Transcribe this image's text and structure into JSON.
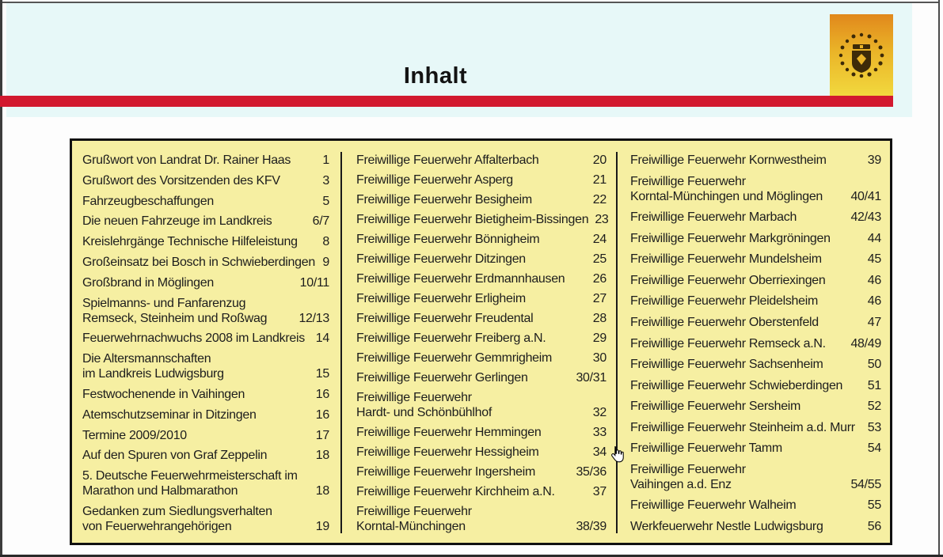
{
  "header": {
    "title": "Inhalt"
  },
  "logo": {
    "name": "kreisfeuerwehrverband-ludwigsburg-seal",
    "colors": {
      "top": "#e1881c",
      "bottom": "#f2d93e",
      "emblem": "#3d2a08"
    }
  },
  "colors": {
    "header_background": "#e7f8f8",
    "divider_red": "#d2192f",
    "panel_yellow": "#f6efa2",
    "text": "#1d1d1d"
  },
  "toc": {
    "columns": [
      {
        "entries": [
          {
            "lines": [
              "Grußwort von Landrat Dr. Rainer Haas"
            ],
            "page": "1"
          },
          {
            "lines": [
              "Grußwort des Vorsitzenden des KFV"
            ],
            "page": "3"
          },
          {
            "lines": [
              "Fahrzeugbeschaffungen"
            ],
            "page": "5"
          },
          {
            "lines": [
              "Die neuen Fahrzeuge im Landkreis"
            ],
            "page": "6/7"
          },
          {
            "lines": [
              "Kreislehrgänge Technische Hilfeleistung"
            ],
            "page": "8"
          },
          {
            "lines": [
              "Großeinsatz bei Bosch in Schwieberdingen"
            ],
            "page": "9"
          },
          {
            "lines": [
              "Großbrand in Möglingen"
            ],
            "page": "10/11"
          },
          {
            "lines": [
              "Spielmanns- und Fanfarenzug",
              "Remseck, Steinheim und Roßwag"
            ],
            "page": "12/13"
          },
          {
            "lines": [
              "Feuerwehrnachwuchs 2008 im Landkreis"
            ],
            "page": "14"
          },
          {
            "lines": [
              "Die Altersmannschaften",
              "im Landkreis Ludwigsburg"
            ],
            "page": "15"
          },
          {
            "lines": [
              "Festwochenende in Vaihingen"
            ],
            "page": "16"
          },
          {
            "lines": [
              "Atemschutzseminar in Ditzingen"
            ],
            "page": "16"
          },
          {
            "lines": [
              "Termine 2009/2010"
            ],
            "page": "17"
          },
          {
            "lines": [
              "Auf den Spuren von Graf Zeppelin"
            ],
            "page": "18"
          },
          {
            "lines": [
              "5. Deutsche Feuerwehrmeisterschaft im",
              "Marathon und Halbmarathon"
            ],
            "page": "18"
          },
          {
            "lines": [
              "Gedanken zum Siedlungsverhalten",
              "von Feuerwehrangehörigen"
            ],
            "page": "19"
          }
        ]
      },
      {
        "entries": [
          {
            "lines": [
              "Freiwillige Feuerwehr Affalterbach"
            ],
            "page": "20"
          },
          {
            "lines": [
              "Freiwillige Feuerwehr Asperg"
            ],
            "page": "21"
          },
          {
            "lines": [
              "Freiwillige Feuerwehr Besigheim"
            ],
            "page": "22"
          },
          {
            "lines": [
              "Freiwillige Feuerwehr Bietigheim-Bissingen"
            ],
            "page": "23"
          },
          {
            "lines": [
              "Freiwillige Feuerwehr Bönnigheim"
            ],
            "page": "24"
          },
          {
            "lines": [
              "Freiwillige Feuerwehr Ditzingen"
            ],
            "page": "25"
          },
          {
            "lines": [
              "Freiwillige Feuerwehr Erdmannhausen"
            ],
            "page": "26"
          },
          {
            "lines": [
              "Freiwillige Feuerwehr Erligheim"
            ],
            "page": "27"
          },
          {
            "lines": [
              "Freiwillige Feuerwehr Freudental"
            ],
            "page": "28"
          },
          {
            "lines": [
              "Freiwillige Feuerwehr Freiberg a.N."
            ],
            "page": "29"
          },
          {
            "lines": [
              "Freiwillige Feuerwehr Gemmrigheim"
            ],
            "page": "30"
          },
          {
            "lines": [
              "Freiwillige Feuerwehr Gerlingen"
            ],
            "page": "30/31"
          },
          {
            "lines": [
              "Freiwillige Feuerwehr",
              "Hardt- und Schönbühlhof"
            ],
            "page": "32"
          },
          {
            "lines": [
              "Freiwillige Feuerwehr Hemmingen"
            ],
            "page": "33"
          },
          {
            "lines": [
              "Freiwillige Feuerwehr Hessigheim"
            ],
            "page": "34"
          },
          {
            "lines": [
              "Freiwillige Feuerwehr Ingersheim"
            ],
            "page": "35/36"
          },
          {
            "lines": [
              "Freiwillige Feuerwehr Kirchheim a.N."
            ],
            "page": "37"
          },
          {
            "lines": [
              "Freiwillige Feuerwehr",
              "Korntal-Münchingen"
            ],
            "page": "38/39"
          }
        ]
      },
      {
        "entries": [
          {
            "lines": [
              "Freiwillige Feuerwehr Kornwestheim"
            ],
            "page": "39"
          },
          {
            "lines": [
              "Freiwillige Feuerwehr",
              "Korntal-Münchingen und Möglingen"
            ],
            "page": "40/41"
          },
          {
            "lines": [
              "Freiwillige Feuerwehr Marbach"
            ],
            "page": "42/43"
          },
          {
            "lines": [
              "Freiwillige Feuerwehr Markgröningen"
            ],
            "page": "44"
          },
          {
            "lines": [
              "Freiwillige Feuerwehr Mundelsheim"
            ],
            "page": "45"
          },
          {
            "lines": [
              "Freiwillige Feuerwehr Oberriexingen"
            ],
            "page": "46"
          },
          {
            "lines": [
              "Freiwillige Feuerwehr Pleidelsheim"
            ],
            "page": "46"
          },
          {
            "lines": [
              "Freiwillige Feuerwehr Oberstenfeld"
            ],
            "page": "47"
          },
          {
            "lines": [
              "Freiwillige Feuerwehr Remseck a.N."
            ],
            "page": "48/49"
          },
          {
            "lines": [
              "Freiwillige Feuerwehr Sachsenheim"
            ],
            "page": "50"
          },
          {
            "lines": [
              "Freiwillige Feuerwehr Schwieberdingen"
            ],
            "page": "51"
          },
          {
            "lines": [
              "Freiwillige Feuerwehr Sersheim"
            ],
            "page": "52"
          },
          {
            "lines": [
              "Freiwillige Feuerwehr Steinheim a.d. Murr"
            ],
            "page": "53"
          },
          {
            "lines": [
              "Freiwillige Feuerwehr Tamm"
            ],
            "page": "54"
          },
          {
            "lines": [
              "Freiwillige Feuerwehr",
              "Vaihingen a.d. Enz"
            ],
            "page": "54/55"
          },
          {
            "lines": [
              "Freiwillige Feuerwehr Walheim"
            ],
            "page": "55"
          },
          {
            "lines": [
              "Werkfeuerwehr Nestle Ludwigsburg"
            ],
            "page": "56"
          }
        ]
      }
    ]
  }
}
